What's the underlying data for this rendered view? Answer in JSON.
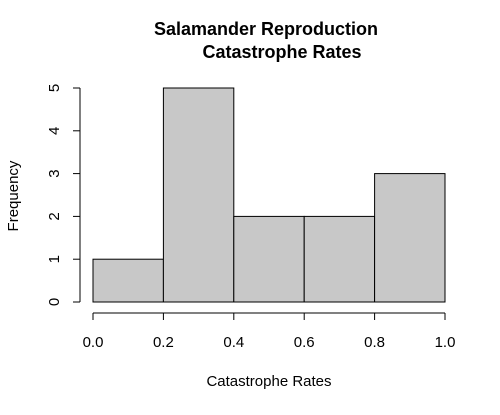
{
  "chart_data": {
    "type": "histogram",
    "title": [
      "Salamander Reproduction",
      "Catastrophe Rates"
    ],
    "xlabel": "Catastrophe Rates",
    "ylabel": "Frequency",
    "xlim": [
      0,
      1
    ],
    "ylim": [
      0,
      5
    ],
    "bins": [
      {
        "start": 0.0,
        "end": 0.2,
        "count": 1
      },
      {
        "start": 0.2,
        "end": 0.4,
        "count": 5
      },
      {
        "start": 0.4,
        "end": 0.6,
        "count": 2
      },
      {
        "start": 0.6,
        "end": 0.8,
        "count": 2
      },
      {
        "start": 0.8,
        "end": 1.0,
        "count": 3
      }
    ],
    "x_ticks": [
      0.0,
      0.2,
      0.4,
      0.6,
      0.8,
      1.0
    ],
    "x_tick_labels": [
      "0.0",
      "0.2",
      "0.4",
      "0.6",
      "0.8",
      "1.0"
    ],
    "y_ticks": [
      0,
      1,
      2,
      3,
      4,
      5
    ],
    "y_tick_labels": [
      "0",
      "1",
      "2",
      "3",
      "4",
      "5"
    ],
    "grid": false,
    "legend": "none",
    "colors": {
      "bar_fill": "#c8c8c8",
      "bar_stroke": "#000000",
      "axis": "#000000"
    }
  }
}
